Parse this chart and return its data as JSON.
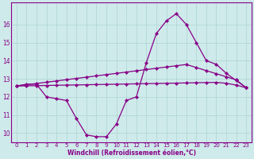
{
  "xlabel": "Windchill (Refroidissement éolien,°C)",
  "background_color": "#ceeaea",
  "grid_color": "#aed4d4",
  "line_color": "#880088",
  "x_hours": [
    0,
    1,
    2,
    3,
    4,
    5,
    6,
    7,
    8,
    9,
    10,
    11,
    12,
    13,
    14,
    15,
    16,
    17,
    18,
    19,
    20,
    21,
    22,
    23
  ],
  "line_wavy": [
    12.6,
    12.7,
    12.7,
    12.0,
    11.9,
    11.8,
    10.8,
    9.9,
    9.8,
    9.8,
    10.5,
    11.8,
    12.0,
    13.9,
    15.5,
    16.2,
    16.6,
    16.0,
    15.0,
    14.0,
    13.8,
    13.3,
    12.9,
    12.5
  ],
  "line_straight_upper": [
    12.6,
    12.67,
    12.74,
    12.81,
    12.88,
    12.95,
    13.02,
    13.09,
    13.16,
    13.23,
    13.3,
    13.37,
    13.44,
    13.51,
    13.58,
    13.65,
    13.72,
    13.79,
    13.62,
    13.45,
    13.28,
    13.11,
    12.94,
    12.5
  ],
  "line_straight_lower": [
    12.6,
    12.61,
    12.62,
    12.63,
    12.64,
    12.65,
    12.66,
    12.67,
    12.68,
    12.69,
    12.7,
    12.71,
    12.72,
    12.73,
    12.74,
    12.75,
    12.76,
    12.77,
    12.78,
    12.79,
    12.8,
    12.75,
    12.65,
    12.5
  ],
  "ylim": [
    9.5,
    17.2
  ],
  "xlim": [
    -0.5,
    23.5
  ],
  "yticks": [
    10,
    11,
    12,
    13,
    14,
    15,
    16
  ],
  "xticks": [
    0,
    1,
    2,
    3,
    4,
    5,
    6,
    7,
    8,
    9,
    10,
    11,
    12,
    13,
    14,
    15,
    16,
    17,
    18,
    19,
    20,
    21,
    22,
    23
  ],
  "tick_fontsize": 5.0,
  "xlabel_fontsize": 5.5,
  "linewidth": 0.9,
  "markersize": 2.2
}
